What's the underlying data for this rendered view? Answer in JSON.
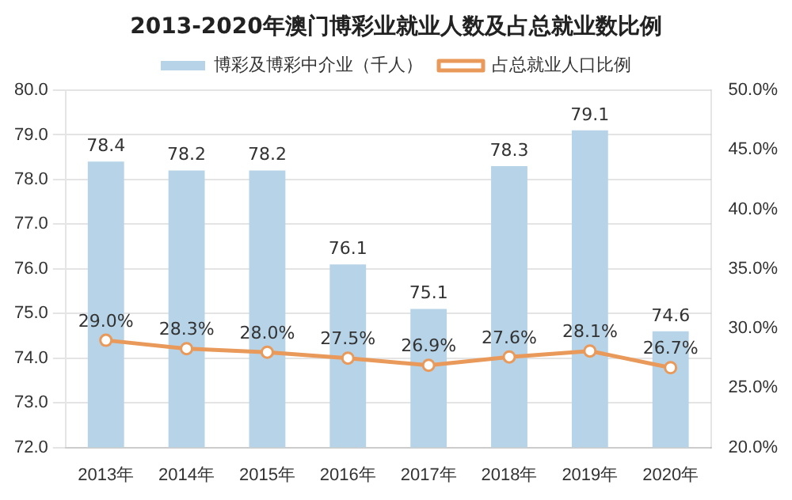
{
  "chart_data": {
    "type": "bar",
    "title": "2013-2020年澳门博彩业就业人数及占总就业数比例",
    "categories": [
      "2013年",
      "2014年",
      "2015年",
      "2016年",
      "2017年",
      "2018年",
      "2019年",
      "2020年"
    ],
    "series": [
      {
        "name": "博彩及博彩中介业（千人）",
        "color": "#b7d3e7",
        "values": [
          78.4,
          78.2,
          78.2,
          76.1,
          75.1,
          78.3,
          79.1,
          74.6
        ],
        "value_labels": [
          "78.4",
          "78.2",
          "78.2",
          "76.1",
          "75.1",
          "78.3",
          "79.1",
          "74.6"
        ]
      },
      {
        "name": "占总就业人口比例",
        "type": "line",
        "axis": "y2",
        "color": "#e9995a",
        "values": [
          29.0,
          28.3,
          28.0,
          27.5,
          26.9,
          27.6,
          28.1,
          26.7
        ],
        "value_labels": [
          "29.0%",
          "28.3%",
          "28.0%",
          "27.5%",
          "26.9%",
          "27.6%",
          "28.1%",
          "26.7%"
        ]
      }
    ],
    "ylim": [
      72,
      80
    ],
    "yticks": [
      {
        "value": 72,
        "label": "72.0"
      },
      {
        "value": 73,
        "label": "73.0"
      },
      {
        "value": 74,
        "label": "74.0"
      },
      {
        "value": 75,
        "label": "75.0"
      },
      {
        "value": 76,
        "label": "76.0"
      },
      {
        "value": 77,
        "label": "77.0"
      },
      {
        "value": 78,
        "label": "78.0"
      },
      {
        "value": 79,
        "label": "79.0"
      },
      {
        "value": 80,
        "label": "80.0"
      }
    ],
    "y2lim": [
      20,
      50
    ],
    "y2ticks": [
      {
        "value": 20,
        "label": "20.0%"
      },
      {
        "value": 25,
        "label": "25.0%"
      },
      {
        "value": 30,
        "label": "30.0%"
      },
      {
        "value": 35,
        "label": "35.0%"
      },
      {
        "value": 40,
        "label": "40.0%"
      },
      {
        "value": 45,
        "label": "45.0%"
      },
      {
        "value": 50,
        "label": "50.0%"
      }
    ],
    "grid": "y",
    "legend": "top",
    "marker": "circle"
  }
}
